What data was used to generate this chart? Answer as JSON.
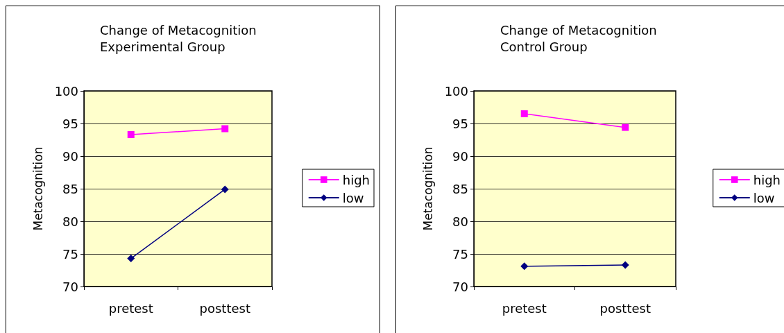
{
  "chart_data": [
    {
      "type": "line",
      "title": "Change of Metacognition",
      "subtitle": "Experimental Group",
      "ylabel": "Metacognition",
      "categories": [
        "pretest",
        "posttest"
      ],
      "series": [
        {
          "name": "high",
          "color": "#ff00ff",
          "marker": "square",
          "values": [
            93.3,
            94.2
          ]
        },
        {
          "name": "low",
          "color": "#000080",
          "marker": "diamond",
          "values": [
            74.3,
            84.9
          ]
        }
      ],
      "ylim": [
        70,
        100
      ],
      "yticks": [
        70,
        75,
        80,
        85,
        90,
        95,
        100
      ],
      "grid": "y",
      "legend": "right"
    },
    {
      "type": "line",
      "title": "Change of Metacognition",
      "subtitle": "Control Group",
      "ylabel": "Metacognition",
      "categories": [
        "pretest",
        "posttest"
      ],
      "series": [
        {
          "name": "high",
          "color": "#ff00ff",
          "marker": "square",
          "values": [
            96.5,
            94.4
          ]
        },
        {
          "name": "low",
          "color": "#000080",
          "marker": "diamond",
          "values": [
            73.1,
            73.3
          ]
        }
      ],
      "ylim": [
        70,
        100
      ],
      "yticks": [
        70,
        75,
        80,
        85,
        90,
        95,
        100
      ],
      "grid": "y",
      "legend": "right"
    }
  ]
}
